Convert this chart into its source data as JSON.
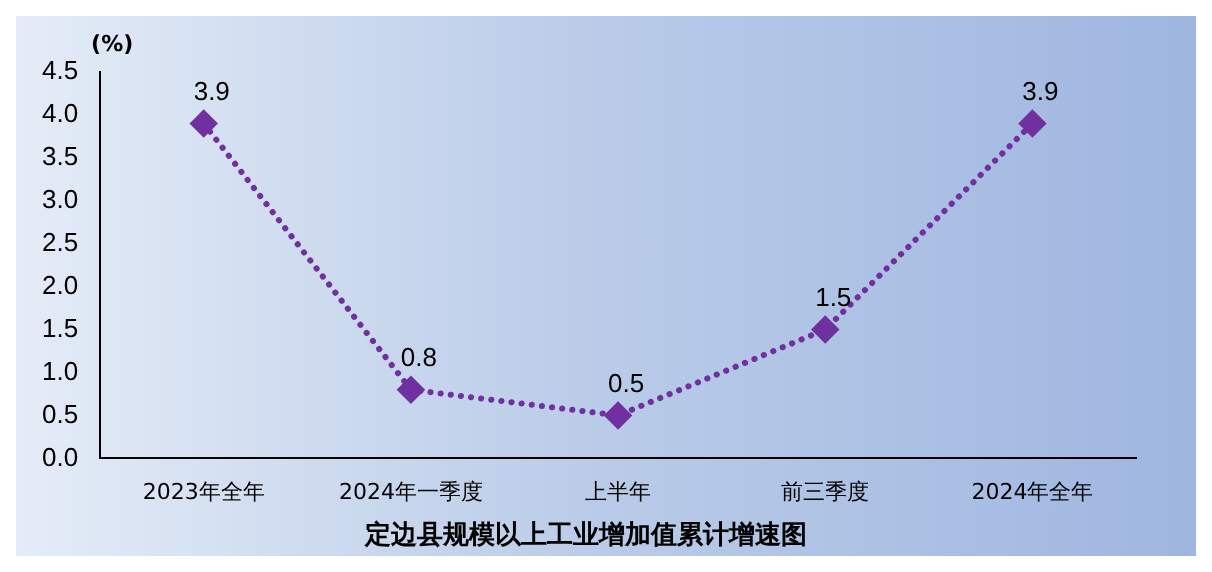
{
  "chart_data": {
    "type": "line",
    "title": "定边县规模以上工业增加值累计增速图",
    "ylabel": "(%)",
    "categories": [
      "2023年全年",
      "2024年一季度",
      "上半年",
      "前三季度",
      "2024年全年"
    ],
    "series": [
      {
        "color": "#7030a0",
        "values": [
          3.9,
          0.8,
          0.5,
          1.5,
          3.9
        ]
      }
    ],
    "ylim": [
      0,
      4.5
    ],
    "yticks": [
      {
        "value": 0,
        "label": "0.0"
      },
      0.5,
      {
        "value": 1,
        "label": "1.0"
      },
      1.5,
      {
        "value": 2,
        "label": "2.0"
      },
      2.5,
      {
        "value": 3,
        "label": "3.0"
      },
      3.5,
      {
        "value": 4,
        "label": "4.0"
      },
      4.5
    ],
    "grid": false,
    "legend": false,
    "marker": "diamond",
    "line_style": "dotted",
    "data_labels": true
  }
}
